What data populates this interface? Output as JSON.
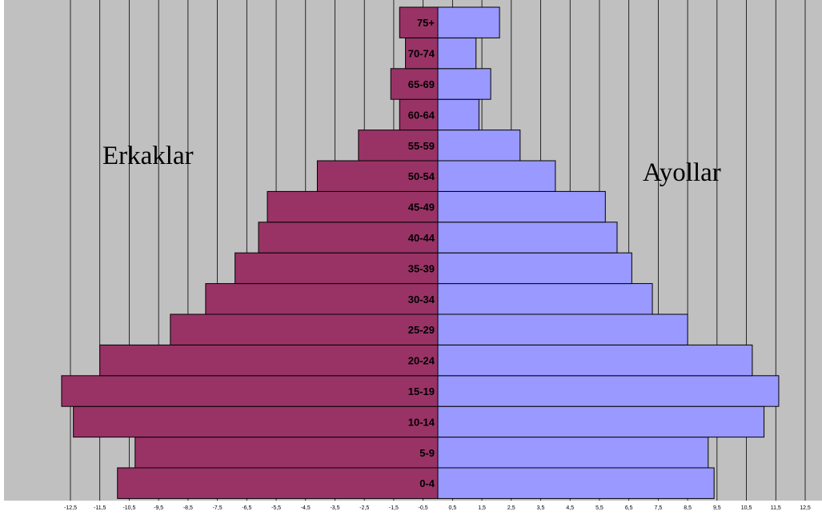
{
  "chart_data": {
    "type": "bar",
    "orientation": "horizontal",
    "layout": "population-pyramid",
    "categories": [
      "0-4",
      "5-9",
      "10-14",
      "15-19",
      "20-24",
      "25-29",
      "30-34",
      "35-39",
      "40-44",
      "45-49",
      "50-54",
      "55-59",
      "60-64",
      "65-69",
      "70-74",
      "75+"
    ],
    "series": [
      {
        "key": "erkaklar",
        "values": [
          -10.9,
          -10.3,
          -12.4,
          -12.8,
          -11.5,
          -9.1,
          -7.9,
          -6.9,
          -6.1,
          -5.8,
          -4.1,
          -2.7,
          -1.3,
          -1.6,
          -1.1,
          -1.3
        ]
      },
      {
        "key": "ayollar",
        "values": [
          9.4,
          9.2,
          11.1,
          11.6,
          10.7,
          8.5,
          7.3,
          6.6,
          6.1,
          5.7,
          4.0,
          2.8,
          1.4,
          1.8,
          1.3,
          2.1
        ]
      }
    ],
    "colors": {
      "erkaklar": "#993366",
      "ayollar": "#9999ff",
      "background": "#c0c0c0"
    },
    "xlim": [
      -12.5,
      12.5
    ],
    "xticks": [
      "-12,5",
      "-11,5",
      "-10,5",
      "-9,5",
      "-8,5",
      "-7,5",
      "-6,5",
      "-5,5",
      "-4,5",
      "-3,5",
      "-2,5",
      "-1,5",
      "-0,5",
      "0,5",
      "1,5",
      "2,5",
      "3,5",
      "4,5",
      "5,5",
      "6,5",
      "7,5",
      "8,5",
      "9,5",
      "10,5",
      "11,5",
      "12,5"
    ],
    "grid": true,
    "annotations": {
      "left": "Erkaklar",
      "right": "Ayollar"
    }
  }
}
